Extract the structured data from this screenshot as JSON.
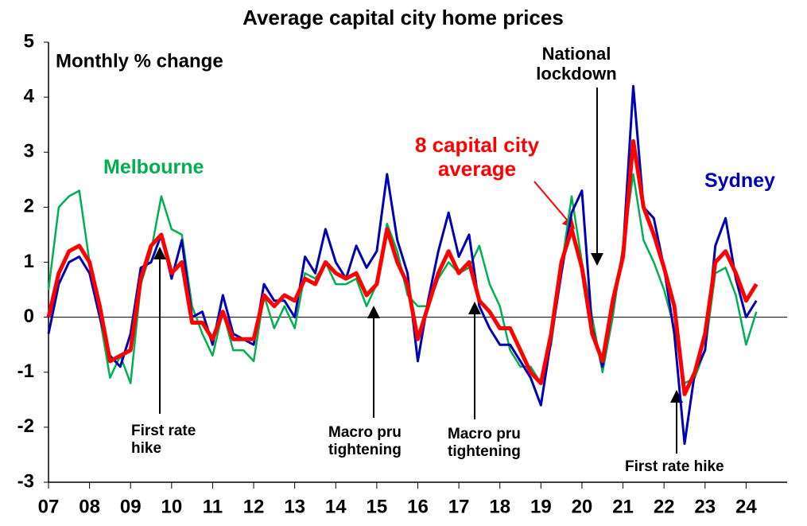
{
  "chart_data": {
    "type": "line",
    "title": "Average capital city home prices",
    "subtitle": "Monthly % change",
    "x": [
      2007,
      2007.25,
      2007.5,
      2007.75,
      2008,
      2008.25,
      2008.5,
      2008.75,
      2009,
      2009.25,
      2009.5,
      2009.75,
      2010,
      2010.25,
      2010.5,
      2010.75,
      2011,
      2011.25,
      2011.5,
      2011.75,
      2012,
      2012.25,
      2012.5,
      2012.75,
      2013,
      2013.25,
      2013.5,
      2013.75,
      2014,
      2014.25,
      2014.5,
      2014.75,
      2015,
      2015.25,
      2015.5,
      2015.75,
      2016,
      2016.25,
      2016.5,
      2016.75,
      2017,
      2017.25,
      2017.5,
      2017.75,
      2018,
      2018.25,
      2018.5,
      2018.75,
      2019,
      2019.25,
      2019.5,
      2019.75,
      2020,
      2020.25,
      2020.5,
      2020.75,
      2021,
      2021.25,
      2021.5,
      2021.75,
      2022,
      2022.25,
      2022.5,
      2022.75,
      2023,
      2023.25,
      2023.5,
      2023.75,
      2024,
      2024.25
    ],
    "series": [
      {
        "name": "Melbourne",
        "color": "#00b050",
        "values": [
          0.5,
          2.0,
          2.2,
          2.3,
          1.0,
          0.0,
          -1.1,
          -0.7,
          -1.2,
          0.6,
          1.2,
          2.2,
          1.6,
          1.5,
          0.2,
          -0.3,
          -0.7,
          0.1,
          -0.6,
          -0.6,
          -0.8,
          0.4,
          -0.2,
          0.2,
          -0.2,
          0.8,
          0.7,
          1.0,
          0.6,
          0.6,
          0.7,
          0.2,
          0.6,
          1.7,
          1.2,
          0.4,
          0.2,
          0.2,
          0.7,
          1.0,
          0.8,
          0.9,
          1.3,
          0.6,
          0.2,
          -0.6,
          -0.9,
          -0.9,
          -1.2,
          -0.5,
          0.9,
          2.2,
          1.0,
          0.0,
          -1.0,
          0.0,
          1.3,
          2.6,
          1.4,
          1.0,
          0.5,
          -0.2,
          -1.2,
          -1.1,
          -0.6,
          0.8,
          0.9,
          0.4,
          -0.5,
          0.1
        ]
      },
      {
        "name": "Sydney",
        "color": "#0000b4",
        "values": [
          -0.3,
          0.6,
          1.0,
          1.1,
          0.8,
          0.0,
          -0.7,
          -0.9,
          -0.3,
          0.9,
          1.0,
          1.5,
          0.7,
          1.4,
          0.0,
          0.1,
          -0.5,
          0.4,
          -0.3,
          -0.4,
          -0.5,
          0.6,
          0.3,
          0.3,
          0.0,
          1.1,
          0.8,
          1.6,
          1.0,
          0.7,
          1.3,
          0.9,
          1.2,
          2.6,
          1.4,
          0.8,
          -0.8,
          0.3,
          1.2,
          1.9,
          1.1,
          1.5,
          0.2,
          -0.2,
          -0.5,
          -0.5,
          -0.8,
          -1.1,
          -1.6,
          -0.4,
          0.8,
          1.9,
          2.3,
          -0.2,
          -0.9,
          0.2,
          1.2,
          4.2,
          2.0,
          1.8,
          0.9,
          -0.3,
          -2.3,
          -1.0,
          -0.6,
          1.3,
          1.8,
          0.7,
          0.0,
          0.3
        ]
      },
      {
        "name": "8 capital city average",
        "color": "#ff0000",
        "values": [
          0.0,
          0.8,
          1.2,
          1.3,
          1.0,
          0.2,
          -0.8,
          -0.7,
          -0.6,
          0.7,
          1.3,
          1.5,
          0.8,
          1.0,
          -0.1,
          -0.1,
          -0.4,
          0.1,
          -0.4,
          -0.4,
          -0.4,
          0.4,
          0.2,
          0.4,
          0.3,
          0.7,
          0.6,
          1.0,
          0.8,
          0.7,
          0.8,
          0.4,
          0.6,
          1.6,
          1.0,
          0.6,
          -0.4,
          0.2,
          0.8,
          1.2,
          0.8,
          1.0,
          0.3,
          0.1,
          -0.2,
          -0.2,
          -0.6,
          -1.0,
          -1.2,
          -0.3,
          1.0,
          1.6,
          0.9,
          -0.3,
          -0.8,
          0.3,
          1.1,
          3.2,
          2.0,
          1.5,
          0.9,
          0.2,
          -1.4,
          -1.0,
          -0.3,
          1.0,
          1.2,
          0.8,
          0.3,
          0.6
        ]
      }
    ],
    "annotations": [
      "First rate hike",
      "Macro pru tightening",
      "Macro pru tightening",
      "National lockdown",
      "First rate hike"
    ],
    "xlim": [
      2007,
      2025
    ],
    "xticks": [
      {
        "value": 2007,
        "label": "07"
      },
      {
        "value": 2008,
        "label": "08"
      },
      {
        "value": 2009,
        "label": "09"
      },
      {
        "value": 2010,
        "label": "10"
      },
      {
        "value": 2011,
        "label": "11"
      },
      {
        "value": 2012,
        "label": "12"
      },
      {
        "value": 2013,
        "label": "13"
      },
      {
        "value": 2014,
        "label": "14"
      },
      {
        "value": 2015,
        "label": "15"
      },
      {
        "value": 2016,
        "label": "16"
      },
      {
        "value": 2017,
        "label": "17"
      },
      {
        "value": 2018,
        "label": "18"
      },
      {
        "value": 2019,
        "label": "19"
      },
      {
        "value": 2020,
        "label": "20"
      },
      {
        "value": 2021,
        "label": "21"
      },
      {
        "value": 2022,
        "label": "22"
      },
      {
        "value": 2023,
        "label": "23"
      },
      {
        "value": 2024,
        "label": "24"
      }
    ],
    "ylim": [
      -3,
      5
    ],
    "yticks": [
      -3,
      -2,
      -1,
      0,
      1,
      2,
      3,
      4,
      5
    ]
  }
}
